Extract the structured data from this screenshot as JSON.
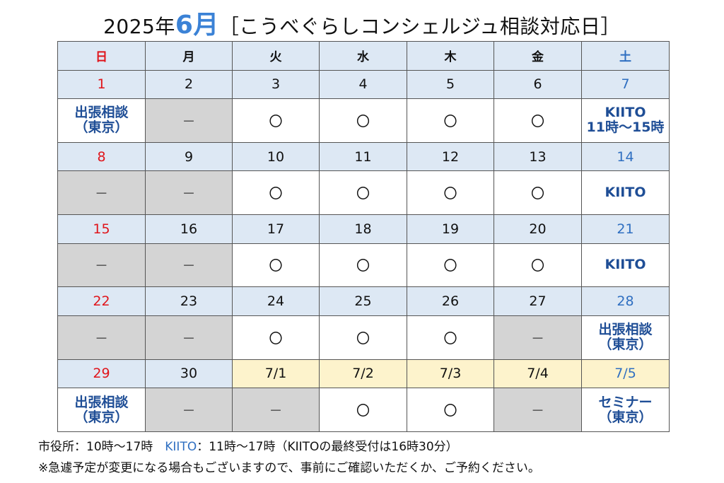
{
  "title": {
    "year": "2025年",
    "month": "6月",
    "rest": "［こうべぐらしコンシェルジュ相談対応日］"
  },
  "weekdays": [
    "日",
    "月",
    "火",
    "水",
    "木",
    "金",
    "土"
  ],
  "weeks": [
    {
      "dates": [
        "1",
        "2",
        "3",
        "4",
        "5",
        "6",
        "7"
      ],
      "content": [
        "出張相談|（東京）",
        "－",
        "〇",
        "〇",
        "〇",
        "〇",
        "KIITO|11時～15時"
      ]
    },
    {
      "dates": [
        "8",
        "9",
        "10",
        "11",
        "12",
        "13",
        "14"
      ],
      "content": [
        "－",
        "－",
        "〇",
        "〇",
        "〇",
        "〇",
        "KIITO"
      ]
    },
    {
      "dates": [
        "15",
        "16",
        "17",
        "18",
        "19",
        "20",
        "21"
      ],
      "content": [
        "－",
        "－",
        "〇",
        "〇",
        "〇",
        "〇",
        "KIITO"
      ]
    },
    {
      "dates": [
        "22",
        "23",
        "24",
        "25",
        "26",
        "27",
        "28"
      ],
      "content": [
        "－",
        "－",
        "〇",
        "〇",
        "〇",
        "－",
        "出張相談|（東京）"
      ]
    },
    {
      "dates": [
        "29",
        "30",
        "7/1",
        "7/2",
        "7/3",
        "7/4",
        "7/5"
      ],
      "content": [
        "出張相談|（東京）",
        "－",
        "－",
        "〇",
        "〇",
        "－",
        "セミナー|（東京）"
      ]
    }
  ],
  "footer": {
    "line1_a": "市役所：10時～17時　",
    "line1_kiito": "KIITO",
    "line1_b": "：11時～17時（KIITOの最終受付は16時30分）",
    "line2": "※急遽予定が変更になる場合もございますので、事前にご確認いただくか、ご予約ください。"
  },
  "colors": {
    "sunday": "#e0141a",
    "saturday": "#2f6fc1",
    "header_bg": "#dde8f4",
    "closed_bg": "#d4d4d4",
    "next_month_bg": "#fdf3cc",
    "month_accent": "#3b82d6"
  }
}
